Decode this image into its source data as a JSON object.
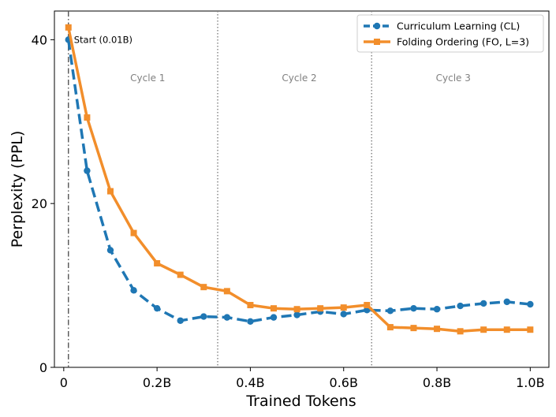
{
  "chart_data": {
    "type": "line",
    "xlabel": "Trained Tokens",
    "ylabel": "Perplexity (PPL)",
    "xlim": [
      -0.02,
      1.04
    ],
    "ylim": [
      0,
      43.5
    ],
    "x_ticks": [
      0,
      0.2,
      0.4,
      0.6,
      0.8,
      1.0
    ],
    "x_tick_labels": [
      "0",
      "0.2B",
      "0.4B",
      "0.6B",
      "0.8B",
      "1.0B"
    ],
    "y_ticks": [
      0,
      20,
      40
    ],
    "y_tick_labels": [
      "0",
      "20",
      "40"
    ],
    "grid": false,
    "legend_position": "top-right",
    "series": [
      {
        "name": "Curriculum Learning (CL)",
        "color": "#1f77b4",
        "style": "dashed",
        "marker": "circle",
        "x": [
          0.01,
          0.05,
          0.1,
          0.15,
          0.2,
          0.25,
          0.3,
          0.35,
          0.4,
          0.45,
          0.5,
          0.55,
          0.6,
          0.65,
          0.7,
          0.75,
          0.8,
          0.85,
          0.9,
          0.95,
          1.0
        ],
        "values": [
          40.0,
          24.0,
          14.3,
          9.4,
          7.2,
          5.7,
          6.2,
          6.1,
          5.6,
          6.1,
          6.4,
          6.8,
          6.5,
          7.0,
          6.9,
          7.2,
          7.1,
          7.5,
          7.8,
          8.0,
          7.7
        ]
      },
      {
        "name": "Folding Ordering (FO, L=3)",
        "color": "#f28e2b",
        "style": "solid",
        "marker": "square",
        "x": [
          0.01,
          0.05,
          0.1,
          0.15,
          0.2,
          0.25,
          0.3,
          0.35,
          0.4,
          0.45,
          0.5,
          0.55,
          0.6,
          0.65,
          0.7,
          0.75,
          0.8,
          0.85,
          0.9,
          0.95,
          1.0
        ],
        "values": [
          41.5,
          30.5,
          21.5,
          16.4,
          12.7,
          11.3,
          9.8,
          9.3,
          7.6,
          7.2,
          7.1,
          7.2,
          7.3,
          7.6,
          4.9,
          4.8,
          4.7,
          4.4,
          4.6,
          4.6,
          4.6
        ]
      }
    ],
    "vlines": [
      {
        "x": 0.01,
        "style": "dashdot",
        "color": "#555555"
      },
      {
        "x": 0.33,
        "style": "dotted",
        "color": "#808080"
      },
      {
        "x": 0.66,
        "style": "dotted",
        "color": "#808080"
      }
    ],
    "annotations": [
      {
        "text": "Start (0.01B)",
        "x": 0.01,
        "y": 40.0
      },
      {
        "text": "Cycle 1",
        "x": 0.18,
        "y": 35.3
      },
      {
        "text": "Cycle 2",
        "x": 0.505,
        "y": 35.3
      },
      {
        "text": "Cycle 3",
        "x": 0.835,
        "y": 35.3
      }
    ]
  }
}
